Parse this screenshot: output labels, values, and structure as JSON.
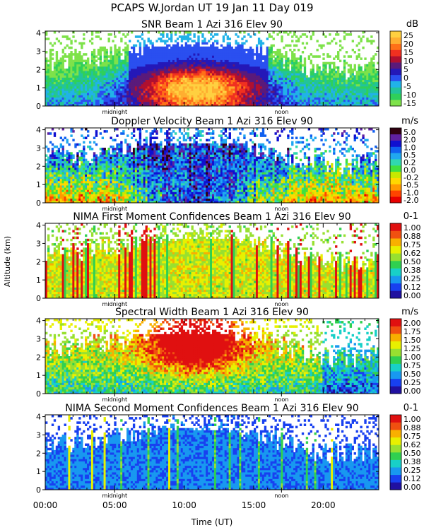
{
  "figure_title": "PCAPS W.Jordan UT  19 Jan 11 Day 019",
  "x_axis": {
    "label": "Time (UT)",
    "range": [
      0,
      24
    ],
    "ticks": [
      {
        "value": 0,
        "label": "00:00"
      },
      {
        "value": 5,
        "label": "05:00"
      },
      {
        "value": 10,
        "label": "10:00"
      },
      {
        "value": 15,
        "label": "15:00"
      },
      {
        "value": 20,
        "label": "20:00"
      }
    ],
    "markers": [
      {
        "value": 5,
        "label": "midnight"
      },
      {
        "value": 17,
        "label": "noon"
      }
    ]
  },
  "y_axis": {
    "label": "Altitude (km)",
    "range": [
      0,
      4.1
    ],
    "ticks": [
      "0",
      "1",
      "2",
      "3",
      "4"
    ]
  },
  "chart_data": [
    {
      "type": "heatmap",
      "title": "SNR Beam 1 Azi 316 Elev 90",
      "unit": "dB",
      "colorbar_labels": [
        "-15",
        "-10",
        "-5",
        "0",
        "5",
        "10",
        "15",
        "20",
        "25"
      ],
      "colorbar_colors": [
        "#7ee24a",
        "#2fd05a",
        "#22c49a",
        "#21b2e8",
        "#2a4ff0",
        "#2418b8",
        "#5a1a7a",
        "#b01030",
        "#f03020",
        "#ff7018",
        "#ffae30",
        "#ffd040"
      ]
    },
    {
      "type": "heatmap",
      "title": "Doppler Velocity Beam 1 Azi 316 Elev 90",
      "unit": "m/s",
      "colorbar_labels": [
        "-2.0",
        "-1.0",
        "-0.5",
        "-0.2",
        "0.0",
        "0.2",
        "0.5",
        "1.0",
        "2.0",
        "5.0"
      ],
      "colorbar_colors": [
        "#e80000",
        "#ff4400",
        "#ff9a00",
        "#ffd800",
        "#c8e800",
        "#40e040",
        "#30d8b0",
        "#20a8f0",
        "#1060f0",
        "#1010d0",
        "#6020a0",
        "#300010"
      ]
    },
    {
      "type": "heatmap",
      "title": "NIMA First Moment Confidences Beam 1 Azi 316 Elev 90",
      "unit": "0-1",
      "colorbar_labels": [
        "0.00",
        "0.12",
        "0.25",
        "0.38",
        "0.50",
        "0.62",
        "0.75",
        "0.88",
        "1.00"
      ],
      "colorbar_colors": [
        "#2010a0",
        "#1840f0",
        "#1898f0",
        "#18d0c8",
        "#30d050",
        "#98e030",
        "#e8f000",
        "#f8b000",
        "#f05010",
        "#e01010"
      ]
    },
    {
      "type": "heatmap",
      "title": "Spectral Width Beam 1 Azi 316 Elev 90",
      "unit": "m/s",
      "colorbar_labels": [
        "0.00",
        "0.25",
        "0.50",
        "0.75",
        "1.00",
        "1.25",
        "1.50",
        "1.75",
        "2.00"
      ],
      "colorbar_colors": [
        "#2010a0",
        "#1840f0",
        "#1898f0",
        "#18d0c8",
        "#30d050",
        "#98e030",
        "#e8f000",
        "#f8b000",
        "#f05010",
        "#e01010"
      ]
    },
    {
      "type": "heatmap",
      "title": "NIMA Second Moment Confidences Beam 1 Azi 316 Elev 90",
      "unit": "0-1",
      "colorbar_labels": [
        "0.00",
        "0.12",
        "0.25",
        "0.38",
        "0.50",
        "0.62",
        "0.75",
        "0.88",
        "1.00"
      ],
      "colorbar_colors": [
        "#2010a0",
        "#1840f0",
        "#1898f0",
        "#18d0c8",
        "#30d050",
        "#98e030",
        "#e8f000",
        "#f8b000",
        "#f05010",
        "#e01010"
      ]
    }
  ]
}
